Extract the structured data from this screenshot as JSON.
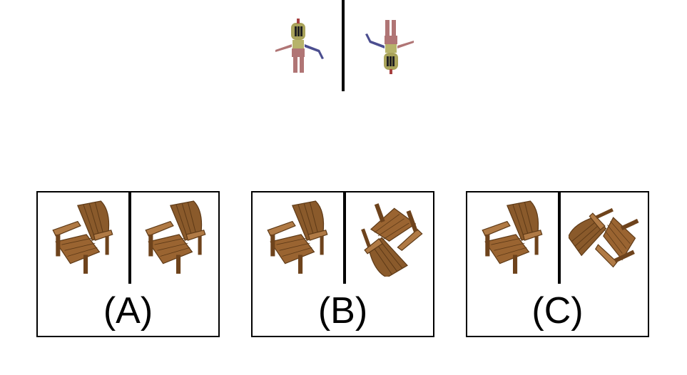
{
  "options": [
    {
      "label": "(A)"
    },
    {
      "label": "(B)"
    },
    {
      "label": "(C)"
    }
  ],
  "icons": {
    "reference_left": "knight-figure-upright-icon",
    "reference_right": "knight-figure-upside-down-icon",
    "option_images": "adirondack-chair-icon"
  },
  "colors": {
    "wood": "#8a5a2b",
    "wood_dark": "#5e3a17",
    "wood_light": "#b07a45",
    "helmet": "#a9a35a",
    "skin": "#b07575",
    "cape": "#4b4e8f"
  }
}
